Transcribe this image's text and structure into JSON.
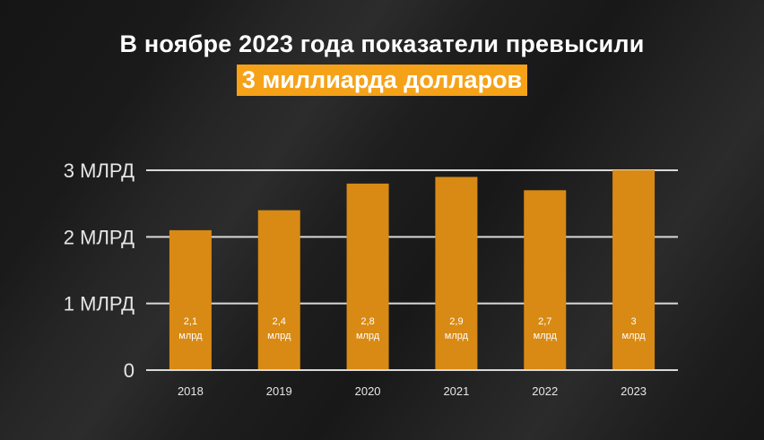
{
  "title": {
    "line1": "В ноябре 2023 года показатели превысили",
    "line2": "3 миллиарда долларов"
  },
  "colors": {
    "bar": "#d88a14",
    "highlight": "#f5a219",
    "grid": "#d9d9d9",
    "text": "#ffffff"
  },
  "chart_data": {
    "type": "bar",
    "categories": [
      "2018",
      "2019",
      "2020",
      "2021",
      "2022",
      "2023"
    ],
    "values": [
      2.1,
      2.4,
      2.8,
      2.9,
      2.7,
      3.0
    ],
    "data_labels": [
      [
        "2,1",
        "млрд"
      ],
      [
        "2,4",
        "млрд"
      ],
      [
        "2,8",
        "млрд"
      ],
      [
        "2,9",
        "млрд"
      ],
      [
        "2,7",
        "млрд"
      ],
      [
        "3",
        "млрд"
      ]
    ],
    "y_ticks": [
      {
        "value": 0,
        "label": "0"
      },
      {
        "value": 1,
        "label": "1 МЛРД"
      },
      {
        "value": 2,
        "label": "2 МЛРД"
      },
      {
        "value": 3,
        "label": "3 МЛРД"
      }
    ],
    "ylim": [
      0,
      3
    ],
    "grid": true,
    "title": "В ноябре 2023 года показатели превысили 3 миллиарда долларов",
    "xlabel": "",
    "ylabel": ""
  }
}
